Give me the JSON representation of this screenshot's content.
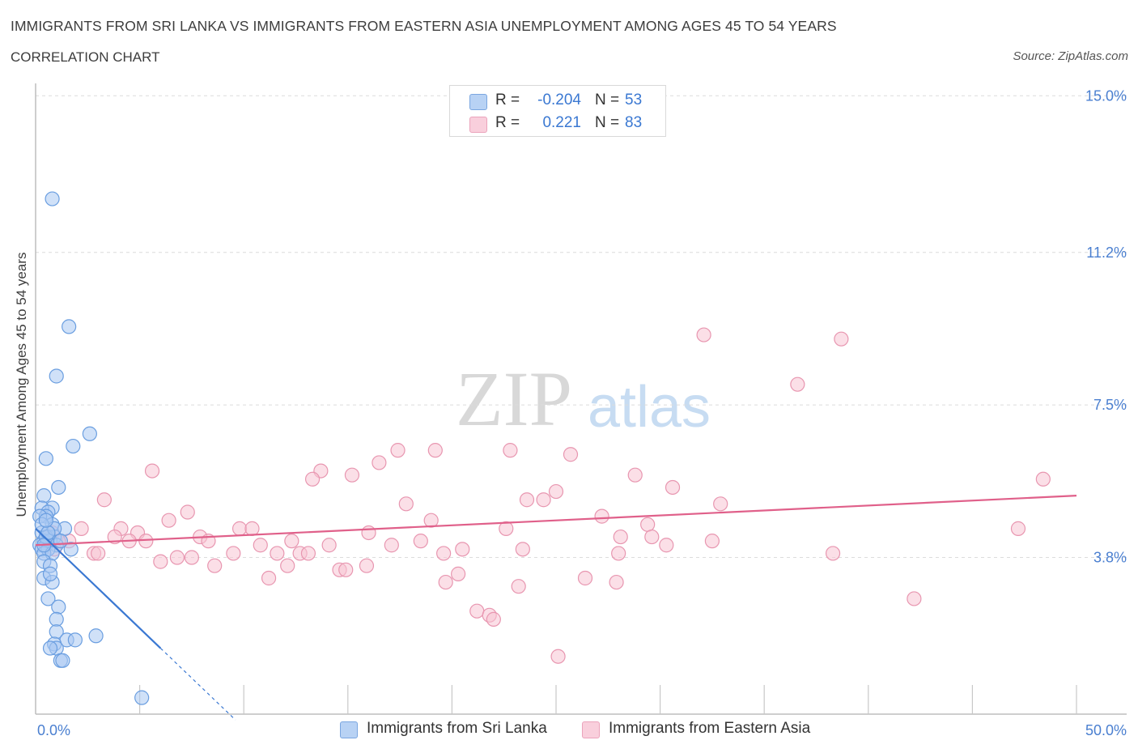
{
  "header": {
    "title": "IMMIGRANTS FROM SRI LANKA VS IMMIGRANTS FROM EASTERN ASIA UNEMPLOYMENT AMONG AGES 45 TO 54 YEARS",
    "subtitle": "CORRELATION CHART",
    "source": "Source: ZipAtlas.com"
  },
  "colors": {
    "blue_fill": "#a9c8f2",
    "blue_stroke": "#6a9ee0",
    "blue_line": "#3a78d2",
    "pink_fill": "#f7c4d3",
    "pink_stroke": "#e896b0",
    "pink_line": "#e0608a",
    "tick_text": "#4a7fd0",
    "grid": "#dcdcdc"
  },
  "legend": {
    "rows": [
      {
        "r_label": "R =",
        "r_value": "-0.204",
        "n_label": "N =",
        "n_value": "53"
      },
      {
        "r_label": "R =",
        "r_value": "0.221",
        "n_label": "N =",
        "n_value": "83"
      }
    ]
  },
  "watermark": {
    "zip": "ZIP",
    "atlas": "atlas"
  },
  "chart_data": {
    "type": "scatter",
    "title": "IMMIGRANTS FROM SRI LANKA VS IMMIGRANTS FROM EASTERN ASIA UNEMPLOYMENT AMONG AGES 45 TO 54 YEARS",
    "xlabel": "",
    "ylabel": "Unemployment Among Ages 45 to 54 years",
    "xlim": [
      0,
      50
    ],
    "ylim": [
      0,
      15.3
    ],
    "x_tick_labels": [
      "0.0%",
      "50.0%"
    ],
    "y_ticks": [
      {
        "value": 3.8,
        "label": "3.8%"
      },
      {
        "value": 7.5,
        "label": "7.5%"
      },
      {
        "value": 11.2,
        "label": "11.2%"
      },
      {
        "value": 15.0,
        "label": "15.0%"
      }
    ],
    "x_minor_ticks": [
      5,
      10,
      15,
      20,
      25,
      30,
      35,
      40,
      45,
      50
    ],
    "grid": true,
    "legend_position": "top-center",
    "series": [
      {
        "name": "Immigrants from Sri Lanka",
        "color": "blue",
        "R": -0.204,
        "N": 53,
        "trend": {
          "x0": 0,
          "y0": 4.5,
          "x1": 6.0,
          "y1": 1.6,
          "dash_to_x": 9.6
        },
        "points": [
          [
            0.8,
            12.5
          ],
          [
            1.6,
            9.4
          ],
          [
            1.0,
            8.2
          ],
          [
            2.6,
            6.8
          ],
          [
            1.8,
            6.5
          ],
          [
            0.5,
            6.2
          ],
          [
            1.1,
            5.5
          ],
          [
            0.4,
            5.3
          ],
          [
            0.8,
            5.0
          ],
          [
            0.3,
            5.0
          ],
          [
            0.6,
            4.9
          ],
          [
            0.5,
            4.8
          ],
          [
            0.2,
            4.8
          ],
          [
            0.8,
            4.6
          ],
          [
            1.4,
            4.5
          ],
          [
            0.3,
            4.4
          ],
          [
            0.6,
            4.3
          ],
          [
            0.9,
            4.3
          ],
          [
            0.4,
            4.2
          ],
          [
            0.7,
            4.2
          ],
          [
            0.2,
            4.1
          ],
          [
            0.5,
            4.1
          ],
          [
            1.0,
            4.1
          ],
          [
            0.3,
            4.0
          ],
          [
            0.6,
            4.0
          ],
          [
            1.7,
            4.0
          ],
          [
            0.4,
            3.9
          ],
          [
            0.8,
            3.9
          ],
          [
            0.4,
            3.7
          ],
          [
            0.7,
            3.6
          ],
          [
            0.4,
            3.3
          ],
          [
            0.8,
            3.2
          ],
          [
            0.6,
            2.8
          ],
          [
            1.1,
            2.6
          ],
          [
            1.0,
            2.3
          ],
          [
            1.0,
            2.0
          ],
          [
            2.9,
            1.9
          ],
          [
            1.5,
            1.8
          ],
          [
            1.9,
            1.8
          ],
          [
            0.9,
            1.7
          ],
          [
            1.0,
            1.6
          ],
          [
            0.7,
            1.6
          ],
          [
            1.2,
            1.3
          ],
          [
            1.3,
            1.3
          ],
          [
            5.1,
            0.4
          ],
          [
            0.5,
            4.3
          ],
          [
            0.9,
            4.5
          ],
          [
            0.3,
            4.6
          ],
          [
            0.6,
            4.4
          ],
          [
            1.2,
            4.2
          ],
          [
            0.7,
            3.4
          ],
          [
            0.5,
            4.7
          ],
          [
            0.4,
            4.1
          ]
        ]
      },
      {
        "name": "Immigrants from Eastern Asia",
        "color": "pink",
        "R": 0.221,
        "N": 83,
        "trend": {
          "x0": 0,
          "y0": 4.1,
          "x1": 50,
          "y1": 5.3
        },
        "points": [
          [
            32.1,
            9.2
          ],
          [
            38.7,
            9.1
          ],
          [
            36.6,
            8.0
          ],
          [
            17.4,
            6.4
          ],
          [
            19.2,
            6.4
          ],
          [
            22.8,
            6.4
          ],
          [
            25.7,
            6.3
          ],
          [
            16.5,
            6.1
          ],
          [
            13.7,
            5.9
          ],
          [
            5.6,
            5.9
          ],
          [
            13.3,
            5.7
          ],
          [
            15.2,
            5.8
          ],
          [
            28.8,
            5.8
          ],
          [
            30.6,
            5.5
          ],
          [
            48.4,
            5.7
          ],
          [
            25.0,
            5.4
          ],
          [
            3.3,
            5.2
          ],
          [
            23.6,
            5.2
          ],
          [
            24.4,
            5.2
          ],
          [
            17.8,
            5.1
          ],
          [
            32.9,
            5.1
          ],
          [
            7.3,
            4.9
          ],
          [
            6.4,
            4.7
          ],
          [
            19.0,
            4.7
          ],
          [
            27.2,
            4.8
          ],
          [
            29.4,
            4.6
          ],
          [
            2.2,
            4.5
          ],
          [
            4.1,
            4.5
          ],
          [
            9.8,
            4.5
          ],
          [
            10.4,
            4.5
          ],
          [
            22.6,
            4.5
          ],
          [
            47.2,
            4.5
          ],
          [
            0.8,
            4.4
          ],
          [
            3.8,
            4.3
          ],
          [
            4.9,
            4.4
          ],
          [
            7.9,
            4.3
          ],
          [
            16.0,
            4.4
          ],
          [
            28.1,
            4.3
          ],
          [
            29.6,
            4.3
          ],
          [
            1.6,
            4.2
          ],
          [
            4.5,
            4.2
          ],
          [
            5.3,
            4.2
          ],
          [
            8.3,
            4.2
          ],
          [
            10.8,
            4.1
          ],
          [
            12.3,
            4.2
          ],
          [
            32.5,
            4.2
          ],
          [
            30.3,
            4.1
          ],
          [
            14.1,
            4.1
          ],
          [
            17.1,
            4.1
          ],
          [
            20.5,
            4.0
          ],
          [
            23.4,
            4.0
          ],
          [
            2.8,
            3.9
          ],
          [
            3.0,
            3.9
          ],
          [
            6.8,
            3.8
          ],
          [
            7.5,
            3.8
          ],
          [
            9.5,
            3.9
          ],
          [
            11.6,
            3.9
          ],
          [
            12.7,
            3.9
          ],
          [
            13.1,
            3.9
          ],
          [
            19.6,
            3.9
          ],
          [
            28.0,
            3.9
          ],
          [
            38.3,
            3.9
          ],
          [
            6.0,
            3.7
          ],
          [
            8.6,
            3.6
          ],
          [
            12.1,
            3.6
          ],
          [
            14.6,
            3.5
          ],
          [
            14.9,
            3.5
          ],
          [
            15.9,
            3.6
          ],
          [
            11.2,
            3.3
          ],
          [
            20.3,
            3.4
          ],
          [
            26.4,
            3.3
          ],
          [
            19.7,
            3.2
          ],
          [
            23.2,
            3.1
          ],
          [
            27.9,
            3.2
          ],
          [
            42.2,
            2.8
          ],
          [
            21.2,
            2.5
          ],
          [
            21.8,
            2.4
          ],
          [
            22.0,
            2.3
          ],
          [
            25.1,
            1.4
          ],
          [
            0.5,
            4.3
          ],
          [
            1.1,
            4.2
          ],
          [
            0.9,
            4.0
          ],
          [
            18.5,
            4.2
          ]
        ]
      }
    ]
  },
  "bottom_legend": {
    "items": [
      {
        "label": "Immigrants from Sri Lanka"
      },
      {
        "label": "Immigrants from Eastern Asia"
      }
    ]
  }
}
